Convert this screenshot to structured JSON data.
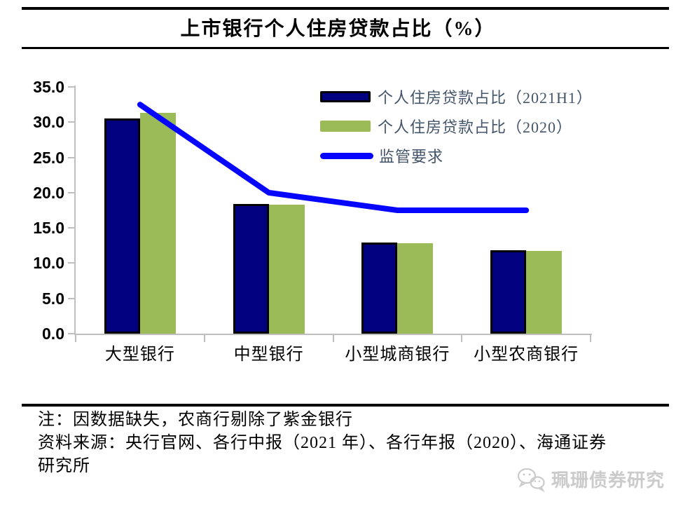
{
  "chart_data": {
    "type": "bar",
    "title": "上市银行个人住房贷款占比（%）",
    "categories": [
      "大型银行",
      "中型银行",
      "小型城商银行",
      "小型农商银行"
    ],
    "series": [
      {
        "name": "个人住房贷款占比（2021H1）",
        "type": "bar",
        "color": "#010180",
        "border_color": "#000000",
        "values": [
          30.5,
          18.4,
          12.9,
          11.8
        ]
      },
      {
        "name": "个人住房贷款占比（2020）",
        "type": "bar",
        "color": "#9BBB59",
        "values": [
          31.3,
          18.3,
          12.8,
          11.7
        ]
      },
      {
        "name": "监管要求",
        "type": "line",
        "color": "#0606FF",
        "values": [
          32.5,
          20.0,
          17.5,
          17.5
        ]
      }
    ],
    "ylim": [
      0,
      35
    ],
    "yticks": [
      "0.0",
      "5.0",
      "10.0",
      "15.0",
      "20.0",
      "25.0",
      "30.0",
      "35.0"
    ],
    "xlabel": "",
    "ylabel": "",
    "grid": false,
    "legend_position": "top-right",
    "axis_color": "#BFBFBF"
  },
  "notes": {
    "note": "注：因数据缺失，农商行剔除了紫金银行",
    "source": "资料来源：央行官网、各行中报（2021 年）、各行年报（2020）、海通证券研究所"
  },
  "watermark": {
    "icon": "wechat-icon",
    "text": "珮珊债券研究"
  },
  "colors": {
    "rule": "#000000",
    "legend_text": "#44546A",
    "watermark": "#CBCBCB",
    "bar_2021h1": "#010180",
    "bar_2020": "#9BBB59",
    "line_regulatory": "#0606FF"
  }
}
